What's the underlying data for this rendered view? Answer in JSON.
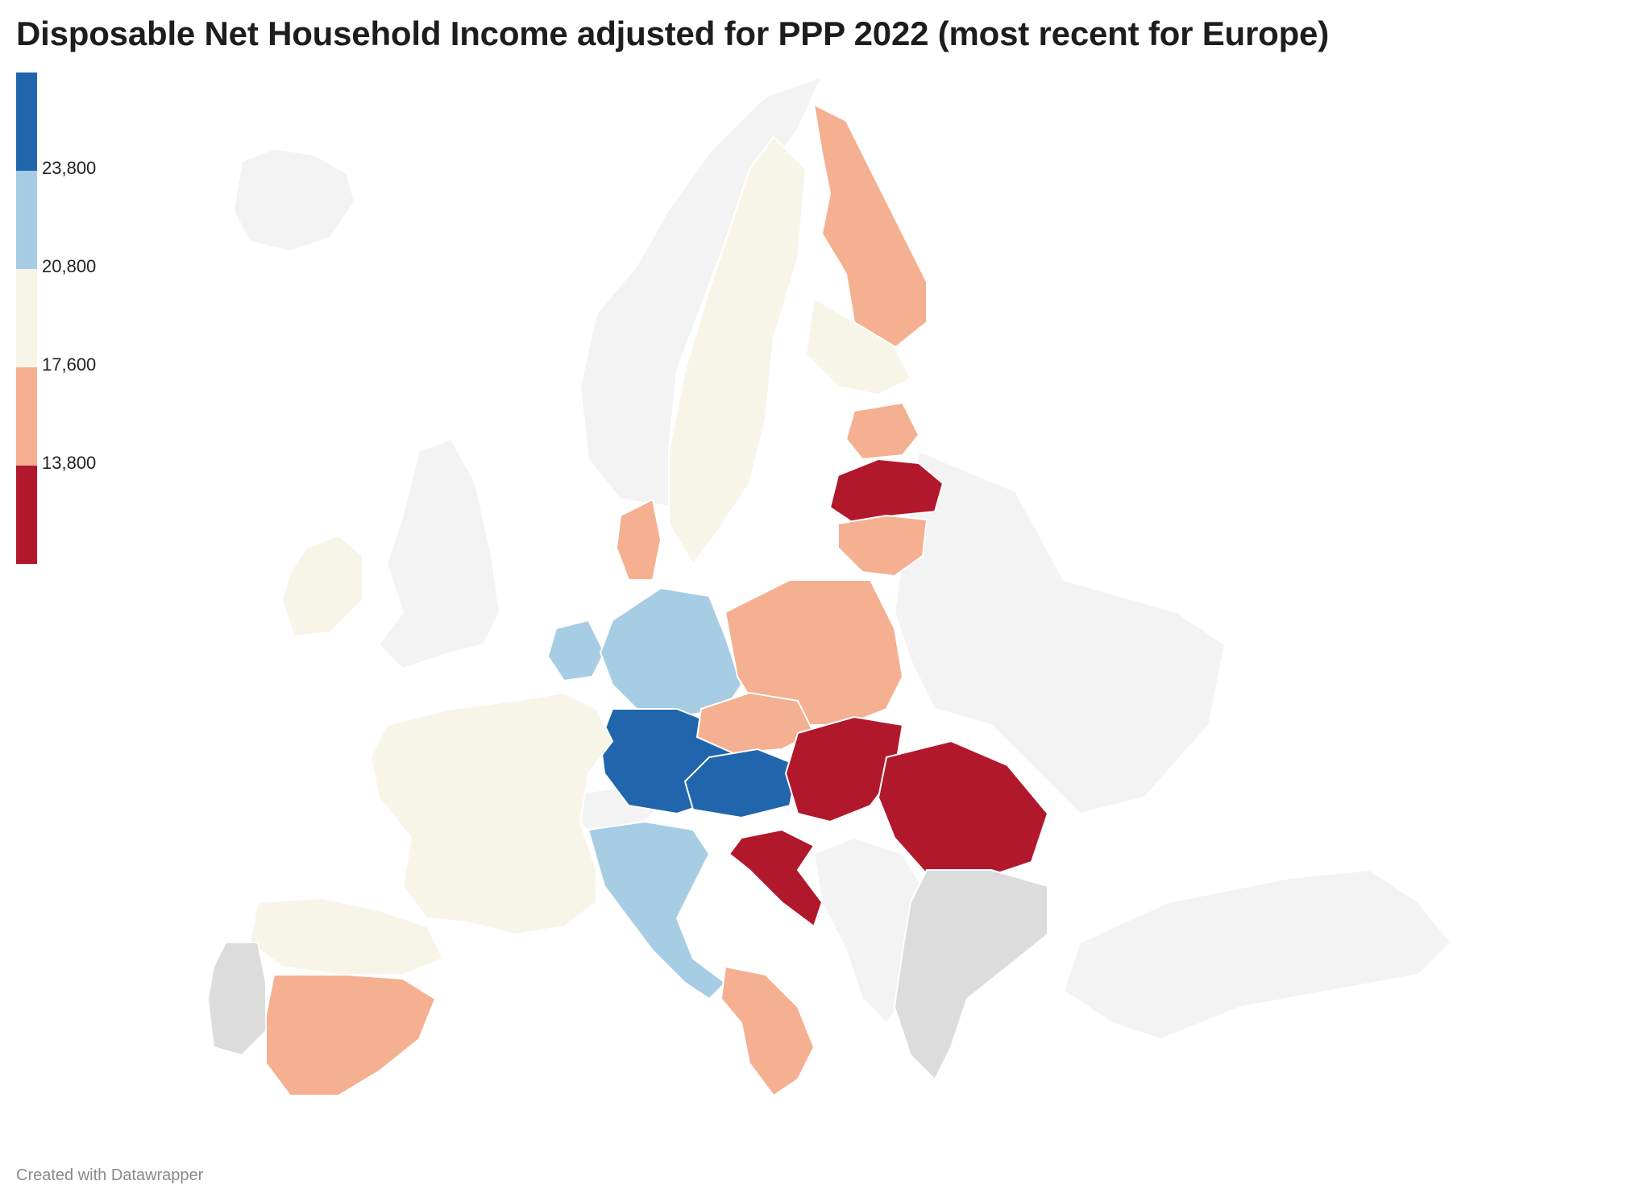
{
  "title": "Disposable Net Household Income adjusted for PPP 2022 (most recent for Europe)",
  "footer": "Created with Datawrapper",
  "legend": {
    "bins": [
      {
        "color": "#2166ac",
        "label": ""
      },
      {
        "color": "#a6cde3",
        "label": "23,800"
      },
      {
        "color": "#f7f5e8",
        "label": "20,800"
      },
      {
        "color": "#f4b090",
        "label": "17,600"
      },
      {
        "color": "#b2182b",
        "label": "13,800"
      }
    ]
  },
  "colors": {
    "no_data": "#dcdcdc",
    "outside": "#f3f3f3",
    "border": "#ffffff"
  },
  "regions": [
    {
      "name": "scandinavia-norway",
      "bin": "outside"
    },
    {
      "name": "sweden",
      "bin": 2
    },
    {
      "name": "finland-north",
      "bin": 3
    },
    {
      "name": "finland-south",
      "bin": 2
    },
    {
      "name": "uk",
      "bin": "outside"
    },
    {
      "name": "ireland",
      "bin": 2
    },
    {
      "name": "iceland",
      "bin": "outside"
    },
    {
      "name": "estonia",
      "bin": 3
    },
    {
      "name": "latvia",
      "bin": 4
    },
    {
      "name": "lithuania",
      "bin": 3
    },
    {
      "name": "denmark",
      "bin": 3
    },
    {
      "name": "netherlands",
      "bin": 1
    },
    {
      "name": "germany-north",
      "bin": 1
    },
    {
      "name": "germany-south",
      "bin": 0
    },
    {
      "name": "poland",
      "bin": 3
    },
    {
      "name": "czechia",
      "bin": 3
    },
    {
      "name": "austria",
      "bin": 0
    },
    {
      "name": "slovakia-hungary",
      "bin": 4
    },
    {
      "name": "romania",
      "bin": 4
    },
    {
      "name": "france",
      "bin": 2
    },
    {
      "name": "switzerland",
      "bin": "outside"
    },
    {
      "name": "italy-north",
      "bin": 1
    },
    {
      "name": "italy-south",
      "bin": 3
    },
    {
      "name": "spain-north",
      "bin": 2
    },
    {
      "name": "spain-south",
      "bin": 3
    },
    {
      "name": "portugal",
      "bin": "no_data"
    },
    {
      "name": "croatia",
      "bin": 4
    },
    {
      "name": "balkans",
      "bin": "outside"
    },
    {
      "name": "bulgaria-greece",
      "bin": "no_data"
    },
    {
      "name": "belarus-ukraine-russia",
      "bin": "outside"
    },
    {
      "name": "turkey",
      "bin": "outside"
    }
  ]
}
